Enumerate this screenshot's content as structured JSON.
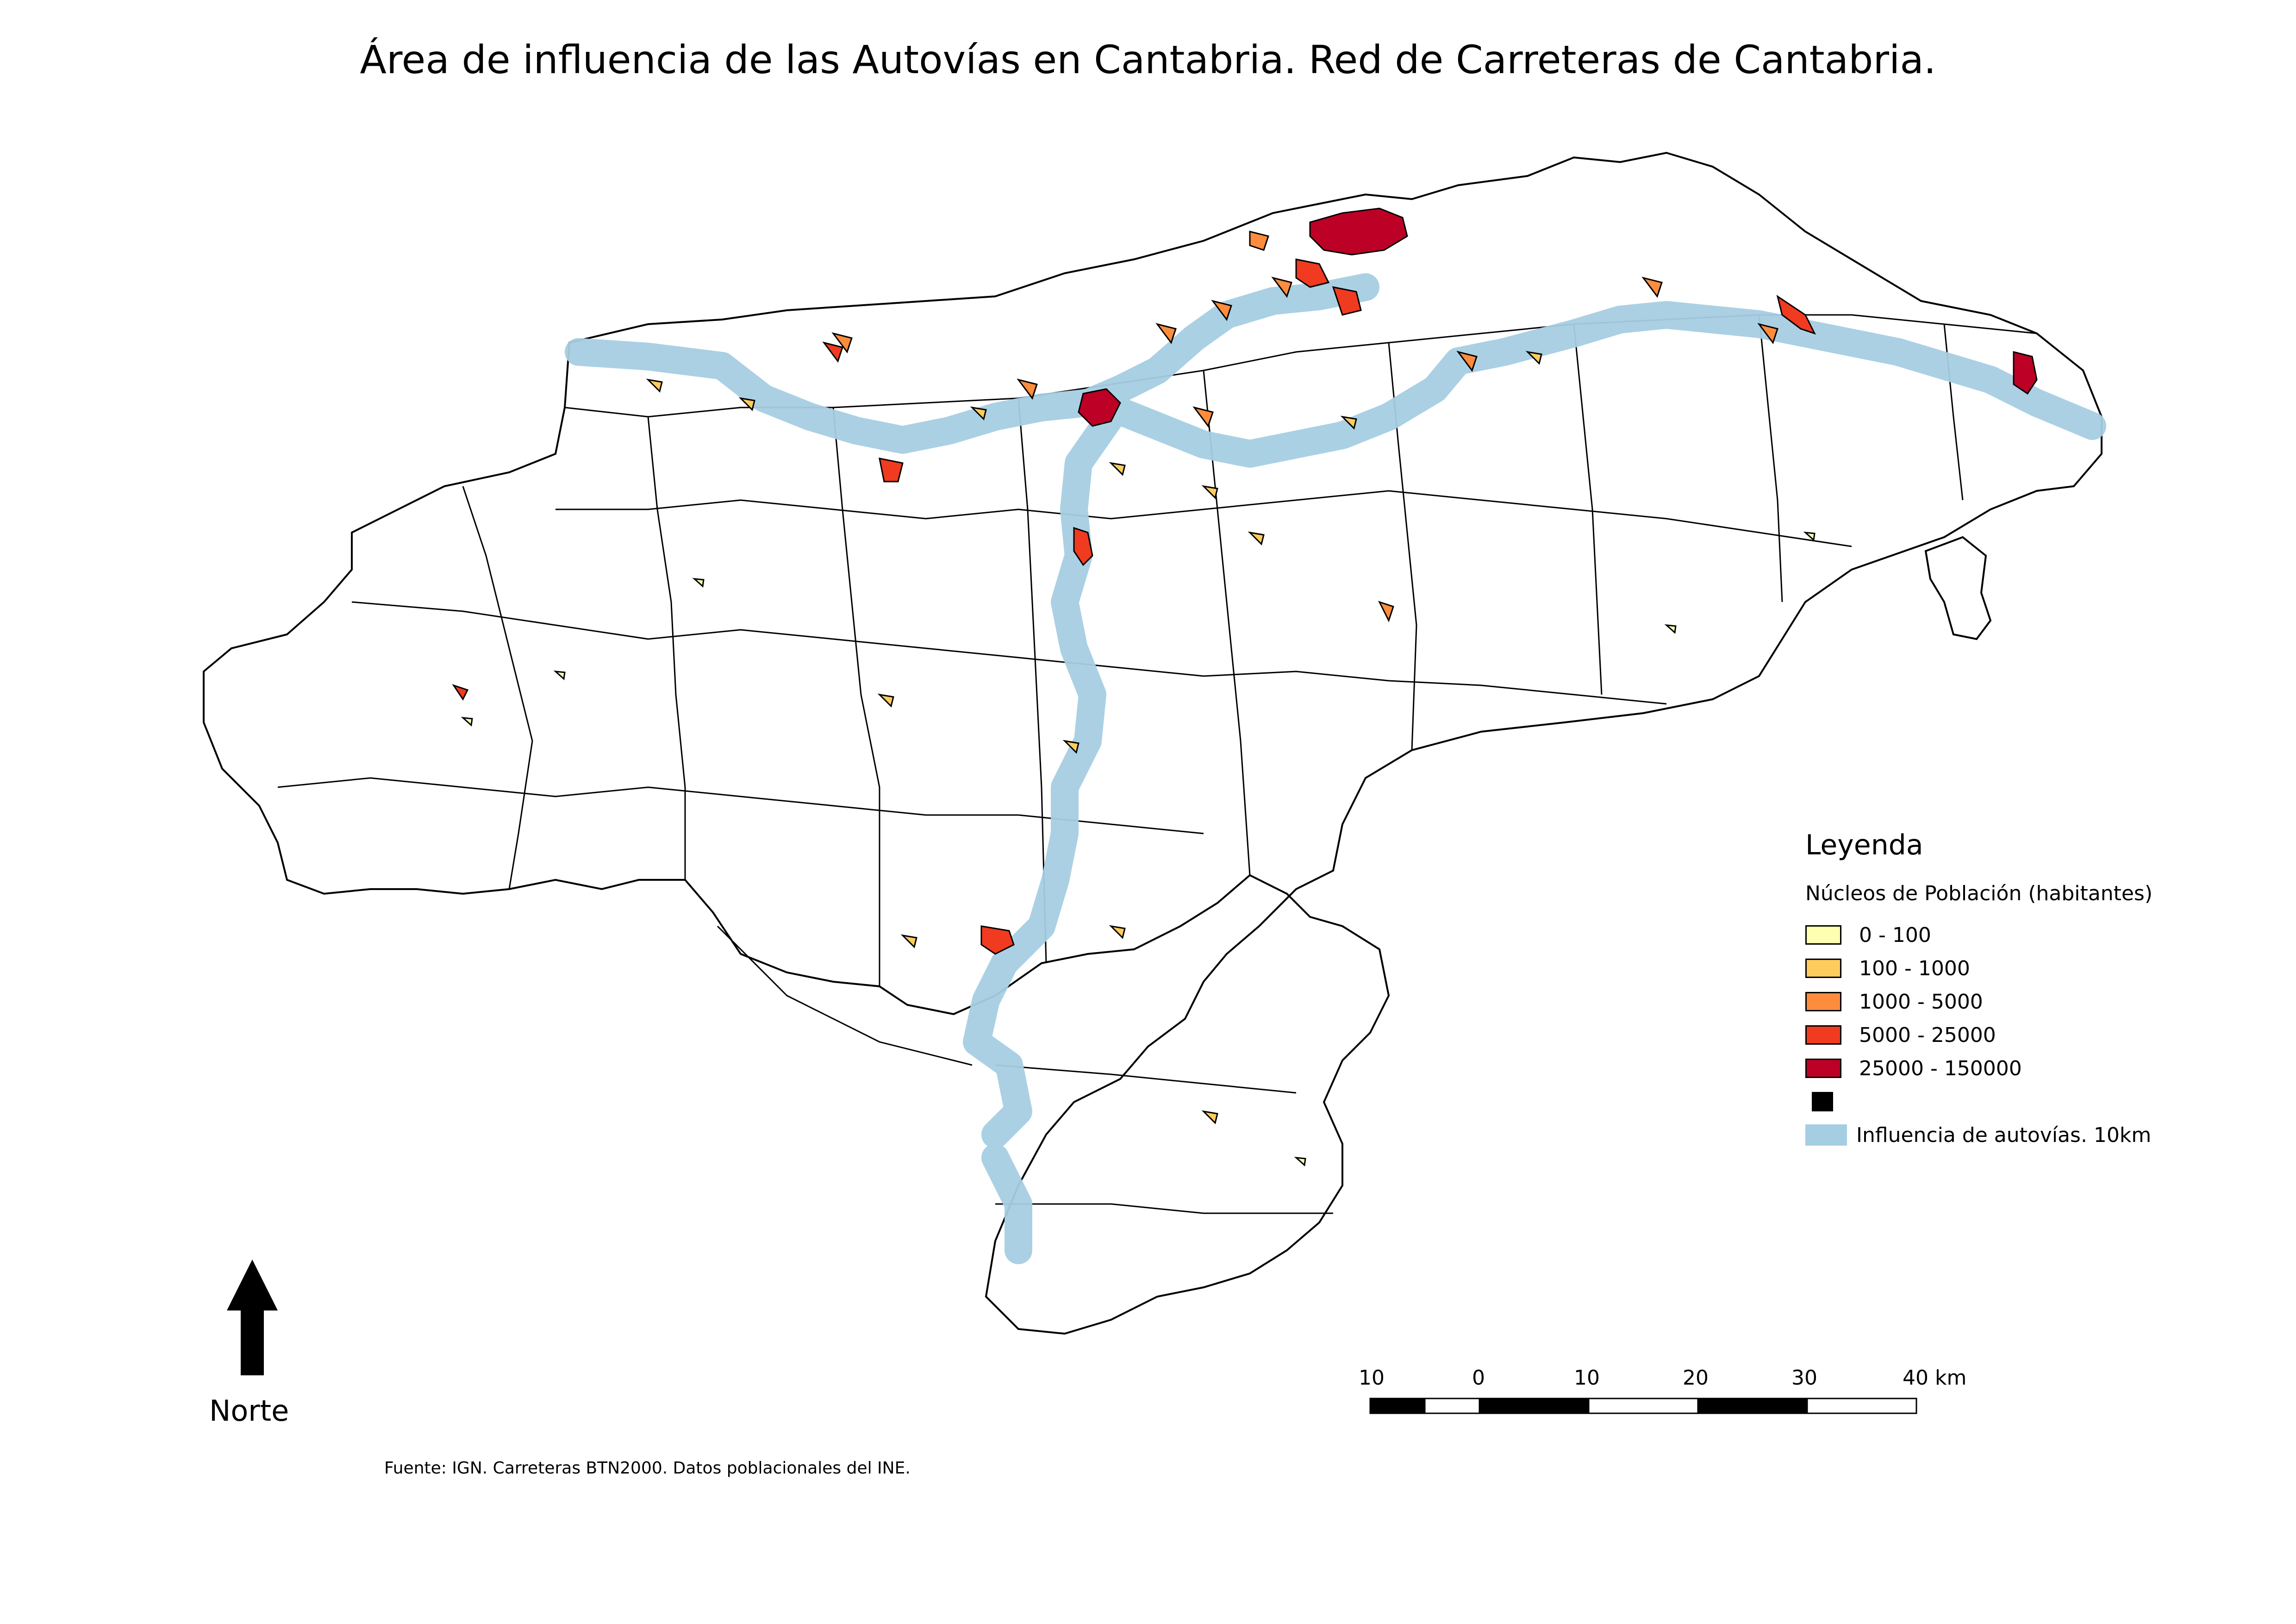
{
  "title": "Área de influencia de las Autovías en Cantabria. Red de Carreteras de Cantabria.",
  "legend": {
    "title": "Leyenda",
    "subtitle": "Núcleos de Población (habitantes)",
    "classes": [
      {
        "label": "0 - 100",
        "color": "#ffffb2"
      },
      {
        "label": "100 - 1000",
        "color": "#fecc5c"
      },
      {
        "label": "1000 - 5000",
        "color": "#fd8d3c"
      },
      {
        "label": "5000 - 25000",
        "color": "#f03b20"
      },
      {
        "label": "25000 - 150000",
        "color": "#bd0026"
      },
      {
        "label": "",
        "color": "#000000"
      }
    ],
    "influence": {
      "label": "Influencia de autovías. 10km",
      "color": "#a6cee3"
    }
  },
  "north_arrow": {
    "label": "Norte",
    "icon": "north-arrow-icon"
  },
  "scale_bar": {
    "labels": [
      "10",
      "0",
      "10",
      "20",
      "30",
      "40 km"
    ]
  },
  "source": "Fuente: IGN. Carreteras BTN2000. Datos poblacionales del INE."
}
